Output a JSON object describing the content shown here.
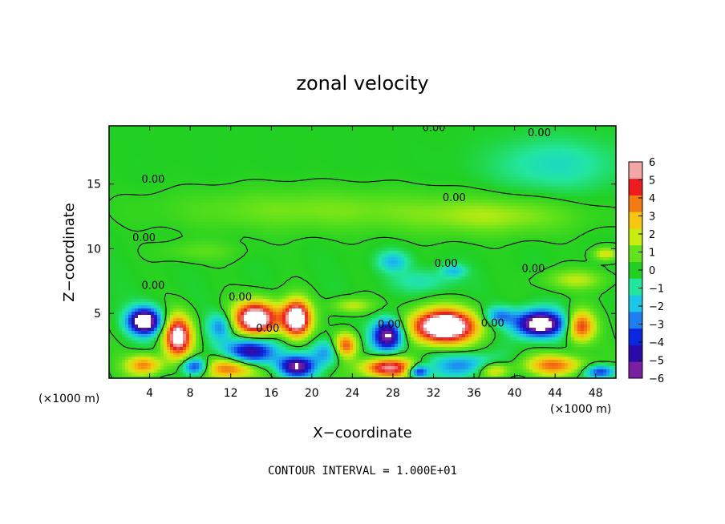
{
  "chart_data": {
    "type": "heatmap",
    "title": "zonal velocity",
    "xlabel": "X−coordinate",
    "ylabel": "Z−coordinate",
    "x_units_left": "(×1000 m)",
    "x_units_right": "(×1000 m)",
    "xlim": [
      0,
      50
    ],
    "ylim": [
      0,
      19.5
    ],
    "x_ticks": [
      4,
      8,
      12,
      16,
      20,
      24,
      28,
      32,
      36,
      40,
      44,
      48
    ],
    "y_ticks": [
      5,
      10,
      15
    ],
    "colorbar": {
      "min": -6,
      "max": 6,
      "ticks": [
        6,
        5,
        4,
        3,
        2,
        1,
        0,
        -1,
        -2,
        -3,
        -4,
        -5,
        -6
      ],
      "tick_labels": [
        "6",
        "5",
        "4",
        "3",
        "2",
        "1",
        "0",
        "−1",
        "−2",
        "−3",
        "−4",
        "−5",
        "−6"
      ],
      "colors": [
        "#7a1fa2",
        "#2a0aa8",
        "#0b28e0",
        "#1e7ff0",
        "#18c8e6",
        "#22e6a0",
        "#21d021",
        "#62e21a",
        "#c8ec10",
        "#f6c70e",
        "#f57a10",
        "#ee1c1c",
        "#f2a6a6"
      ]
    },
    "contour_labels": [
      {
        "text": "0.00",
        "x": 30.9,
        "y": 19.4
      },
      {
        "text": "0.00",
        "x": 41.3,
        "y": 19.0
      },
      {
        "text": "0.00",
        "x": 3.2,
        "y": 15.4
      },
      {
        "text": "0.00",
        "x": 32.9,
        "y": 14.0
      },
      {
        "text": "0.00",
        "x": 2.3,
        "y": 10.9
      },
      {
        "text": "0.00",
        "x": 32.1,
        "y": 8.9
      },
      {
        "text": "0.00",
        "x": 40.7,
        "y": 8.5
      },
      {
        "text": "0.00",
        "x": 3.2,
        "y": 7.2
      },
      {
        "text": "0.00",
        "x": 11.8,
        "y": 6.3
      },
      {
        "text": "0.00",
        "x": 14.5,
        "y": 3.9
      },
      {
        "text": "0.00",
        "x": 26.5,
        "y": 4.2
      },
      {
        "text": "0.00",
        "x": 36.7,
        "y": 4.3
      }
    ],
    "footnote": "CONTOUR INTERVAL = 1.000E+01"
  }
}
